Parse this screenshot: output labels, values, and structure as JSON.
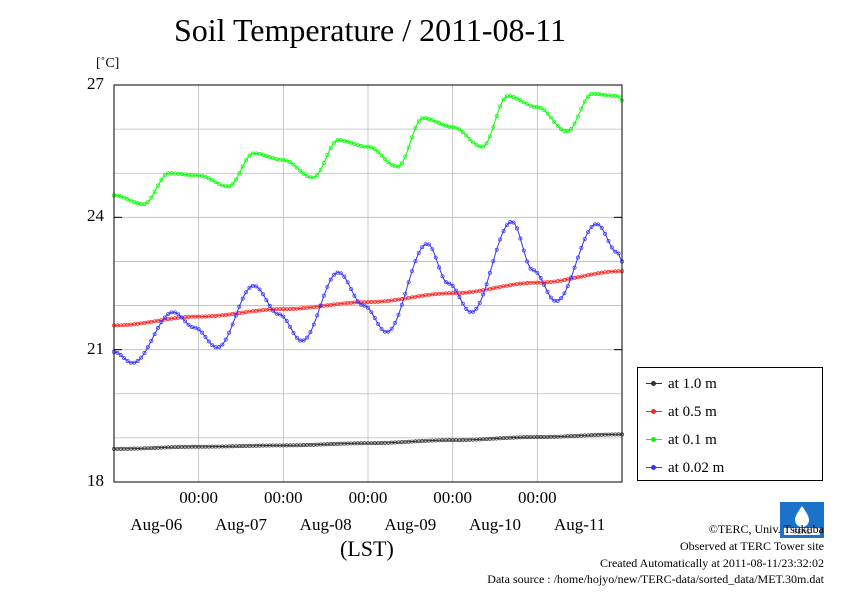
{
  "header": {
    "title": "Soil Temperature / 2011-08-11",
    "unit": "[˚C]"
  },
  "chart_data": {
    "type": "line",
    "title": "Soil Temperature / 2011-08-11",
    "ylabel": "[˚C]",
    "xlabel": "(LST)",
    "ylim": [
      18,
      27
    ],
    "xlim": [
      0,
      6
    ],
    "x_unit": "days since 2011-08-05 12:00",
    "yticks": [
      "27",
      "24",
      "21",
      "18"
    ],
    "ytick_values": [
      27,
      24,
      21,
      18
    ],
    "xtick_time_labels": [
      "00:00",
      "00:00",
      "00:00",
      "00:00",
      "00:00"
    ],
    "xtick_times": [
      1,
      2,
      3,
      4,
      5
    ],
    "xtick_date_labels": [
      "Aug-06",
      "Aug-07",
      "Aug-08",
      "Aug-09",
      "Aug-10",
      "Aug-11"
    ],
    "xtick_dates": [
      0.5,
      1.5,
      2.5,
      3.5,
      4.5,
      5.5
    ],
    "grid": true,
    "legend_position": "right, below plot top",
    "series": [
      {
        "name": "at 1.0 m",
        "color": "#333333",
        "x": [
          0,
          1,
          2,
          3,
          4,
          5,
          6
        ],
        "y": [
          18.75,
          18.8,
          18.83,
          18.88,
          18.95,
          19.02,
          19.08
        ]
      },
      {
        "name": "at 0.5 m",
        "color": "#ff2020",
        "x": [
          0,
          1,
          2,
          3,
          4,
          5,
          6
        ],
        "y": [
          21.55,
          21.75,
          21.92,
          22.08,
          22.28,
          22.52,
          22.78
        ]
      },
      {
        "name": "at 0.1 m",
        "color": "#00ff00",
        "x": [
          0,
          0.35,
          0.65,
          1.0,
          1.35,
          1.65,
          2.0,
          2.35,
          2.65,
          3.0,
          3.35,
          3.65,
          4.0,
          4.35,
          4.65,
          5.0,
          5.35,
          5.65,
          5.95,
          6.0
        ],
        "y": [
          24.5,
          24.3,
          25.0,
          24.95,
          24.7,
          25.45,
          25.3,
          24.9,
          25.75,
          25.6,
          25.15,
          26.25,
          26.05,
          25.6,
          26.75,
          26.5,
          25.95,
          26.8,
          26.75,
          26.65
        ]
      },
      {
        "name": "at 0.02 m",
        "color": "#3333ff",
        "x": [
          0,
          0.22,
          0.7,
          0.95,
          1.22,
          1.65,
          1.95,
          2.22,
          2.65,
          2.95,
          3.22,
          3.7,
          3.95,
          4.22,
          4.7,
          4.95,
          5.22,
          5.7,
          5.95,
          6.0
        ],
        "y": [
          20.95,
          20.7,
          21.85,
          21.5,
          21.05,
          22.45,
          21.8,
          21.2,
          22.75,
          22.0,
          21.4,
          23.4,
          22.5,
          21.85,
          23.9,
          22.8,
          22.1,
          23.85,
          23.2,
          23.0
        ]
      }
    ]
  },
  "footer": {
    "credit1": "©TERC, Univ. Tsukuba",
    "credit2": "Observed at TERC Tower site",
    "credit3": "Created Automatically at 2011-08-11/23:32:02",
    "credit4": "Data source : /home/hojyo/new/TERC-data/sorted_data/MET.30m.dat",
    "logo_text": "TERC"
  }
}
